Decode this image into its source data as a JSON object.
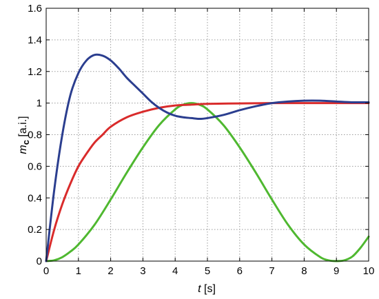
{
  "chart_data": {
    "type": "line",
    "title": "",
    "xlabel_var": "t",
    "xlabel_unit": "[s]",
    "ylabel_var": "m",
    "ylabel_sub": "c",
    "ylabel_unit": "[a.i.]",
    "xlim": [
      0,
      10
    ],
    "ylim": [
      0,
      1.6
    ],
    "xticks": [
      "0",
      "1",
      "2",
      "3",
      "4",
      "5",
      "6",
      "7",
      "8",
      "9",
      "10"
    ],
    "yticks": [
      "0",
      "0.2",
      "0.4",
      "0.6",
      "0.8",
      "1",
      "1.2",
      "1.4",
      "1.6"
    ],
    "grid": true,
    "legend": "none",
    "series": [
      {
        "color": "#2b3e8f",
        "points": [
          [
            0,
            0
          ],
          [
            0.25,
            0.45
          ],
          [
            0.5,
            0.8
          ],
          [
            0.75,
            1.05
          ],
          [
            1.0,
            1.19
          ],
          [
            1.25,
            1.27
          ],
          [
            1.5,
            1.305
          ],
          [
            1.75,
            1.3
          ],
          [
            2.0,
            1.27
          ],
          [
            2.25,
            1.22
          ],
          [
            2.5,
            1.16
          ],
          [
            2.75,
            1.11
          ],
          [
            3.0,
            1.06
          ],
          [
            3.25,
            1.01
          ],
          [
            3.5,
            0.97
          ],
          [
            3.75,
            0.94
          ],
          [
            4.0,
            0.92
          ],
          [
            4.25,
            0.91
          ],
          [
            4.5,
            0.905
          ],
          [
            4.75,
            0.9
          ],
          [
            5.0,
            0.905
          ],
          [
            5.5,
            0.925
          ],
          [
            6.0,
            0.955
          ],
          [
            6.5,
            0.98
          ],
          [
            7.0,
            1.0
          ],
          [
            7.5,
            1.01
          ],
          [
            8.0,
            1.015
          ],
          [
            8.5,
            1.015
          ],
          [
            9.0,
            1.01
          ],
          [
            9.5,
            1.005
          ],
          [
            10.0,
            1.005
          ]
        ]
      },
      {
        "color": "#d92b2b",
        "points": [
          [
            0,
            0
          ],
          [
            0.25,
            0.2
          ],
          [
            0.5,
            0.36
          ],
          [
            0.75,
            0.49
          ],
          [
            1.0,
            0.6
          ],
          [
            1.25,
            0.68
          ],
          [
            1.5,
            0.75
          ],
          [
            1.75,
            0.8
          ],
          [
            2.0,
            0.85
          ],
          [
            2.5,
            0.91
          ],
          [
            3.0,
            0.945
          ],
          [
            3.5,
            0.97
          ],
          [
            4.0,
            0.985
          ],
          [
            4.5,
            0.99
          ],
          [
            5.0,
            0.995
          ],
          [
            6.0,
            0.998
          ],
          [
            7.0,
            1.0
          ],
          [
            8.0,
            1.0
          ],
          [
            9.0,
            1.0
          ],
          [
            10.0,
            1.0
          ]
        ]
      },
      {
        "color": "#4fb830",
        "points": [
          [
            0,
            0
          ],
          [
            0.25,
            0.005
          ],
          [
            0.5,
            0.025
          ],
          [
            0.75,
            0.06
          ],
          [
            1.0,
            0.105
          ],
          [
            1.5,
            0.23
          ],
          [
            2.0,
            0.39
          ],
          [
            2.5,
            0.56
          ],
          [
            3.0,
            0.72
          ],
          [
            3.5,
            0.86
          ],
          [
            4.0,
            0.96
          ],
          [
            4.25,
            0.99
          ],
          [
            4.5,
            1.0
          ],
          [
            4.75,
            0.99
          ],
          [
            5.0,
            0.96
          ],
          [
            5.5,
            0.86
          ],
          [
            6.0,
            0.72
          ],
          [
            6.5,
            0.56
          ],
          [
            7.0,
            0.39
          ],
          [
            7.5,
            0.23
          ],
          [
            8.0,
            0.105
          ],
          [
            8.5,
            0.025
          ],
          [
            8.75,
            0.005
          ],
          [
            9.0,
            0.0
          ],
          [
            9.25,
            0.005
          ],
          [
            9.5,
            0.03
          ],
          [
            9.75,
            0.085
          ],
          [
            10.0,
            0.155
          ]
        ]
      }
    ]
  }
}
